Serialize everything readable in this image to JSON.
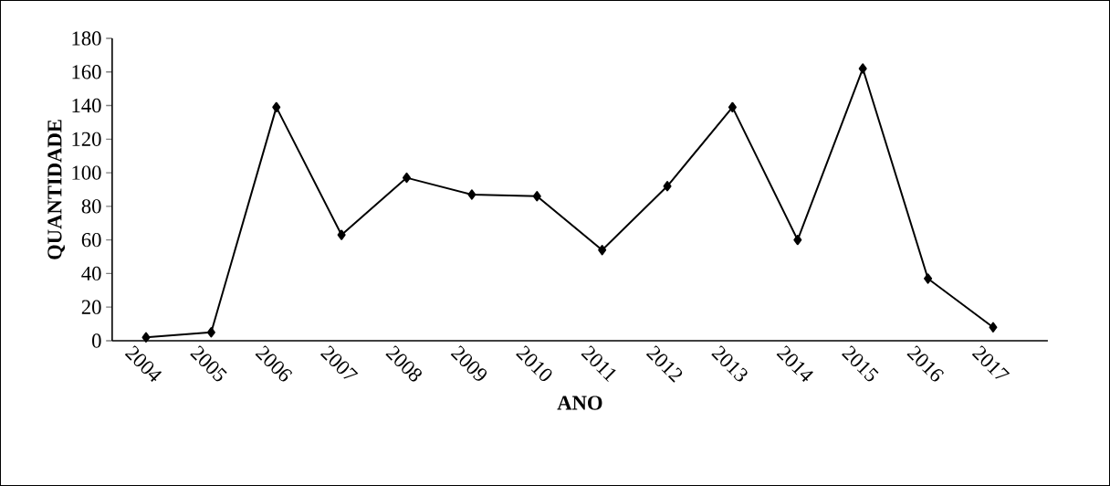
{
  "chart_data": {
    "type": "line",
    "xlabel": "ANO",
    "ylabel": "QUANTIDADE",
    "categories": [
      "2004",
      "2005",
      "2006",
      "2007",
      "2008",
      "2009",
      "2010",
      "2011",
      "2012",
      "2013",
      "2014",
      "2015",
      "2016",
      "2017"
    ],
    "series": [
      {
        "color": "#000000",
        "values": [
          2,
          5,
          139,
          63,
          97,
          87,
          86,
          54,
          92,
          139,
          60,
          162,
          37,
          8
        ]
      }
    ],
    "ylim": [
      0,
      180
    ],
    "yticks": [
      0,
      20,
      40,
      60,
      80,
      100,
      120,
      140,
      160,
      180
    ],
    "marker": "diamond",
    "line_style": "solid",
    "grid": false
  }
}
